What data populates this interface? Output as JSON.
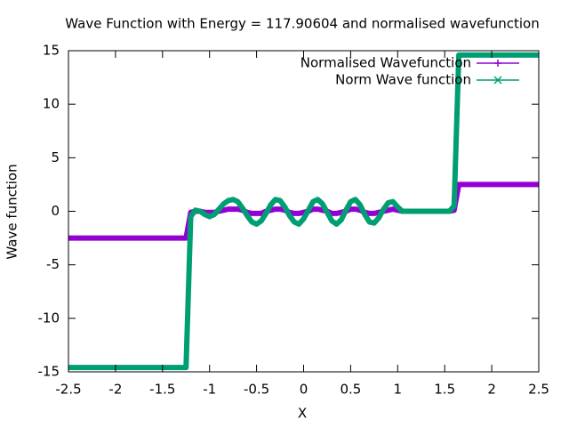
{
  "chart_data": {
    "type": "line",
    "title": "Wave Function with Energy = 117.90604 and normalised wavefunction",
    "x_label": "X",
    "y_label": "Wave function",
    "xlim": [
      -2.5,
      2.5
    ],
    "xticks": [
      -2.5,
      -2,
      -1.5,
      -1,
      -0.5,
      0,
      0.5,
      1,
      1.5,
      2,
      2.5
    ],
    "ylim": [
      -15,
      15
    ],
    "yticks": [
      -15,
      -10,
      -5,
      0,
      5,
      10,
      15
    ],
    "legend": "top-right",
    "x": [
      -2.5,
      -2.45,
      -2.4,
      -2.35,
      -2.3,
      -2.25,
      -2.2,
      -2.15,
      -2.1,
      -2.05,
      -2,
      -1.95,
      -1.9,
      -1.85,
      -1.8,
      -1.75,
      -1.7,
      -1.65,
      -1.6,
      -1.55,
      -1.5,
      -1.45,
      -1.4,
      -1.35,
      -1.3,
      -1.25,
      -1.2,
      -1.15,
      -1.1,
      -1.05,
      -1,
      -0.95,
      -0.9,
      -0.85,
      -0.8,
      -0.75,
      -0.7,
      -0.65,
      -0.6,
      -0.55,
      -0.5,
      -0.45,
      -0.4,
      -0.35,
      -0.3,
      -0.25,
      -0.2,
      -0.15,
      -0.1,
      -0.05,
      0,
      0.05,
      0.1,
      0.15,
      0.2,
      0.25,
      0.3,
      0.35,
      0.4,
      0.45,
      0.5,
      0.55,
      0.6,
      0.65,
      0.7,
      0.75,
      0.8,
      0.85,
      0.9,
      0.95,
      1,
      1.05,
      1.1,
      1.15,
      1.2,
      1.25,
      1.3,
      1.35,
      1.4,
      1.45,
      1.5,
      1.55,
      1.6,
      1.65,
      1.7,
      1.75,
      1.8,
      1.85,
      1.9,
      1.95,
      2,
      2.05,
      2.1,
      2.15,
      2.2,
      2.25,
      2.3,
      2.35,
      2.4,
      2.45,
      2.5
    ],
    "series": [
      {
        "name": "Normalised Wavefunction",
        "color": "#9400d3",
        "values": [
          -2.5,
          -2.5,
          -2.5,
          -2.5,
          -2.5,
          -2.5,
          -2.5,
          -2.5,
          -2.5,
          -2.5,
          -2.5,
          -2.5,
          -2.5,
          -2.5,
          -2.5,
          -2.5,
          -2.5,
          -2.5,
          -2.5,
          -2.5,
          -2.5,
          -2.5,
          -2.5,
          -2.5,
          -2.5,
          -2.5,
          -0.1,
          0,
          0,
          -0.1,
          -0.1,
          -0.1,
          0,
          0.1,
          0.2,
          0.2,
          0.2,
          0.1,
          -0.1,
          -0.2,
          -0.2,
          -0.2,
          0,
          0.1,
          0.2,
          0.2,
          0.1,
          -0.1,
          -0.2,
          -0.2,
          -0.1,
          0,
          0.2,
          0.2,
          0.1,
          0,
          -0.2,
          -0.2,
          -0.1,
          0,
          0.2,
          0.2,
          0.1,
          -0.1,
          -0.2,
          -0.2,
          -0.1,
          0,
          0.1,
          0.2,
          0.1,
          0,
          0,
          0,
          0,
          0,
          0,
          0,
          0,
          0,
          0,
          0,
          0.1,
          2.5,
          2.5,
          2.5,
          2.5,
          2.5,
          2.5,
          2.5,
          2.5,
          2.5,
          2.5,
          2.5,
          2.5,
          2.5,
          2.5,
          2.5,
          2.5,
          2.5,
          2.5
        ]
      },
      {
        "name": "Norm Wave function",
        "color": "#009e73",
        "values": [
          -14.6,
          -14.6,
          -14.6,
          -14.6,
          -14.6,
          -14.6,
          -14.6,
          -14.6,
          -14.6,
          -14.6,
          -14.6,
          -14.6,
          -14.6,
          -14.6,
          -14.6,
          -14.6,
          -14.6,
          -14.6,
          -14.6,
          -14.6,
          -14.6,
          -14.6,
          -14.6,
          -14.6,
          -14.6,
          -14.6,
          -0.5,
          0.1,
          0,
          -0.3,
          -0.5,
          -0.3,
          0.2,
          0.7,
          1.0,
          1.1,
          0.9,
          0.3,
          -0.4,
          -1.0,
          -1.2,
          -0.9,
          -0.2,
          0.6,
          1.1,
          1.0,
          0.4,
          -0.4,
          -1.0,
          -1.2,
          -0.7,
          0.1,
          0.9,
          1.1,
          0.7,
          -0.1,
          -0.9,
          -1.2,
          -0.8,
          0.1,
          0.9,
          1.1,
          0.6,
          -0.3,
          -1.0,
          -1.1,
          -0.6,
          0.2,
          0.8,
          0.9,
          0.4,
          0,
          0,
          0,
          0,
          0,
          0,
          0,
          0,
          0,
          0,
          0,
          0.5,
          14.6,
          14.6,
          14.6,
          14.6,
          14.6,
          14.6,
          14.6,
          14.6,
          14.6,
          14.6,
          14.6,
          14.6,
          14.6,
          14.6,
          14.6,
          14.6,
          14.6,
          14.6
        ]
      }
    ]
  }
}
